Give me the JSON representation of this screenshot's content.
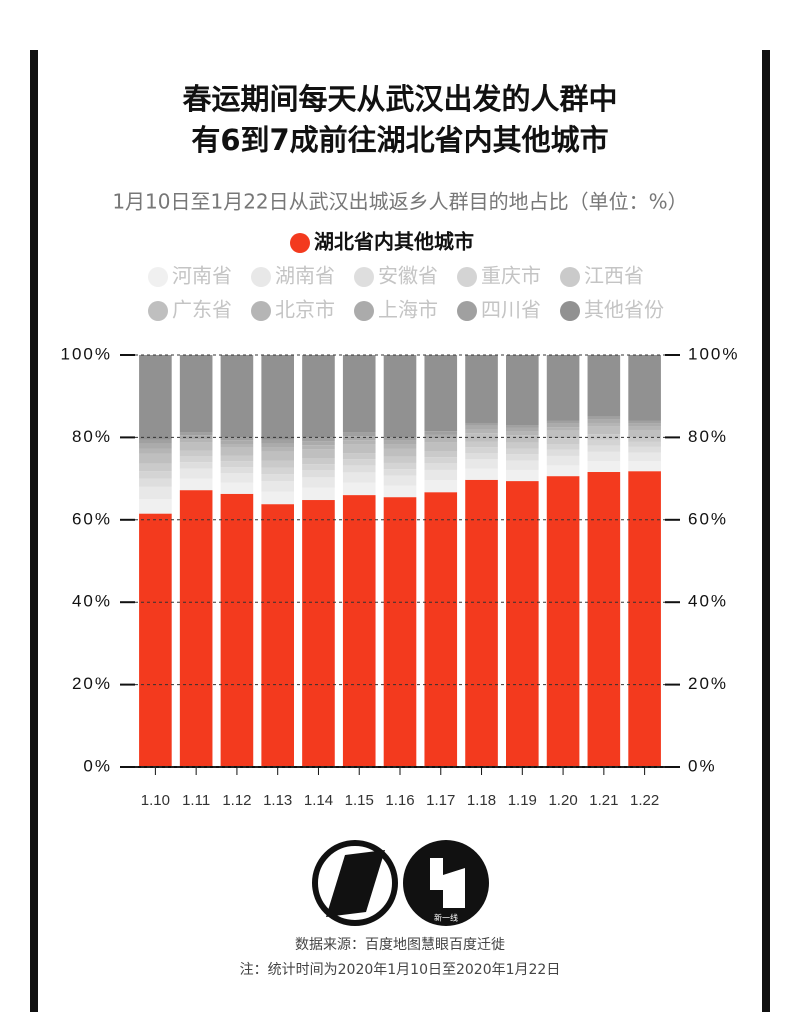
{
  "chart_data": {
    "type": "bar",
    "stacked": true,
    "title": "春运期间每天从武汉出发的人群中",
    "title_line2": "有6到7成前往湖北省内其他城市",
    "subtitle": "1月10日至1月22日从武汉出城返乡人群目的地占比（单位：%）",
    "categories": [
      "1.10",
      "1.11",
      "1.12",
      "1.13",
      "1.14",
      "1.15",
      "1.16",
      "1.17",
      "1.18",
      "1.19",
      "1.20",
      "1.21",
      "1.22"
    ],
    "series": [
      {
        "name": "湖北省内其他城市",
        "color": "#f33a1e",
        "values": [
          61.5,
          67.2,
          66.3,
          63.8,
          64.8,
          66.0,
          65.5,
          66.7,
          69.7,
          69.4,
          70.6,
          71.6,
          71.8
        ]
      },
      {
        "name": "河南省",
        "color": "#f0f0f0",
        "values": [
          3.5,
          2.8,
          2.7,
          3.0,
          3.0,
          3.0,
          2.8,
          2.9,
          2.7,
          2.7,
          2.6,
          2.6,
          2.4
        ]
      },
      {
        "name": "湖南省",
        "color": "#e8e8e8",
        "values": [
          3.0,
          2.4,
          2.3,
          2.6,
          2.5,
          2.5,
          2.4,
          2.5,
          2.3,
          2.3,
          2.3,
          2.3,
          2.1
        ]
      },
      {
        "name": "安徽省",
        "color": "#dedede",
        "values": [
          2.0,
          1.6,
          1.5,
          1.7,
          1.7,
          1.7,
          1.6,
          1.6,
          1.5,
          1.5,
          1.5,
          1.5,
          1.4
        ]
      },
      {
        "name": "重庆市",
        "color": "#d4d4d4",
        "values": [
          1.8,
          1.4,
          1.4,
          1.6,
          1.5,
          1.5,
          1.5,
          1.5,
          1.4,
          1.4,
          1.4,
          1.4,
          1.2
        ]
      },
      {
        "name": "江西省",
        "color": "#cacaca",
        "values": [
          1.8,
          1.4,
          1.4,
          1.6,
          1.5,
          1.5,
          1.5,
          1.5,
          1.4,
          1.4,
          1.4,
          1.4,
          1.2
        ]
      },
      {
        "name": "广东省",
        "color": "#bfbfbf",
        "values": [
          2.5,
          1.9,
          1.9,
          2.2,
          2.1,
          2.1,
          2.0,
          2.0,
          2.0,
          1.8,
          1.8,
          1.8,
          1.7
        ]
      },
      {
        "name": "北京市",
        "color": "#b5b5b5",
        "values": [
          1.2,
          0.9,
          0.9,
          1.0,
          1.0,
          1.0,
          1.0,
          1.0,
          0.9,
          0.9,
          0.9,
          0.9,
          0.8
        ]
      },
      {
        "name": "上海市",
        "color": "#ababab",
        "values": [
          1.2,
          0.9,
          0.9,
          1.0,
          1.0,
          1.0,
          0.9,
          0.9,
          0.9,
          0.9,
          0.8,
          0.8,
          0.8
        ]
      },
      {
        "name": "四川省",
        "color": "#a0a0a0",
        "values": [
          1.0,
          0.8,
          0.7,
          0.9,
          0.9,
          1.0,
          0.8,
          0.9,
          0.7,
          0.7,
          0.7,
          0.7,
          0.6
        ]
      },
      {
        "name": "其他省份",
        "color": "#919191",
        "values": [
          20.5,
          18.7,
          20.0,
          20.6,
          20.0,
          18.7,
          20.0,
          18.5,
          16.5,
          17.0,
          16.0,
          15.0,
          16.0
        ]
      }
    ],
    "ylim": [
      0,
      100
    ],
    "yticks": [
      {
        "value": 0,
        "label": "0%"
      },
      {
        "value": 20,
        "label": "20%"
      },
      {
        "value": 40,
        "label": "40%"
      },
      {
        "value": 60,
        "label": "60%"
      },
      {
        "value": 80,
        "label": "80%"
      },
      {
        "value": 100,
        "label": "100%"
      }
    ],
    "grid": true
  },
  "footer": {
    "logo_text": "新一线",
    "source": "数据来源：百度地图慧眼百度迁徙",
    "note": "注：统计时间为2020年1月10日至2020年1月22日"
  }
}
